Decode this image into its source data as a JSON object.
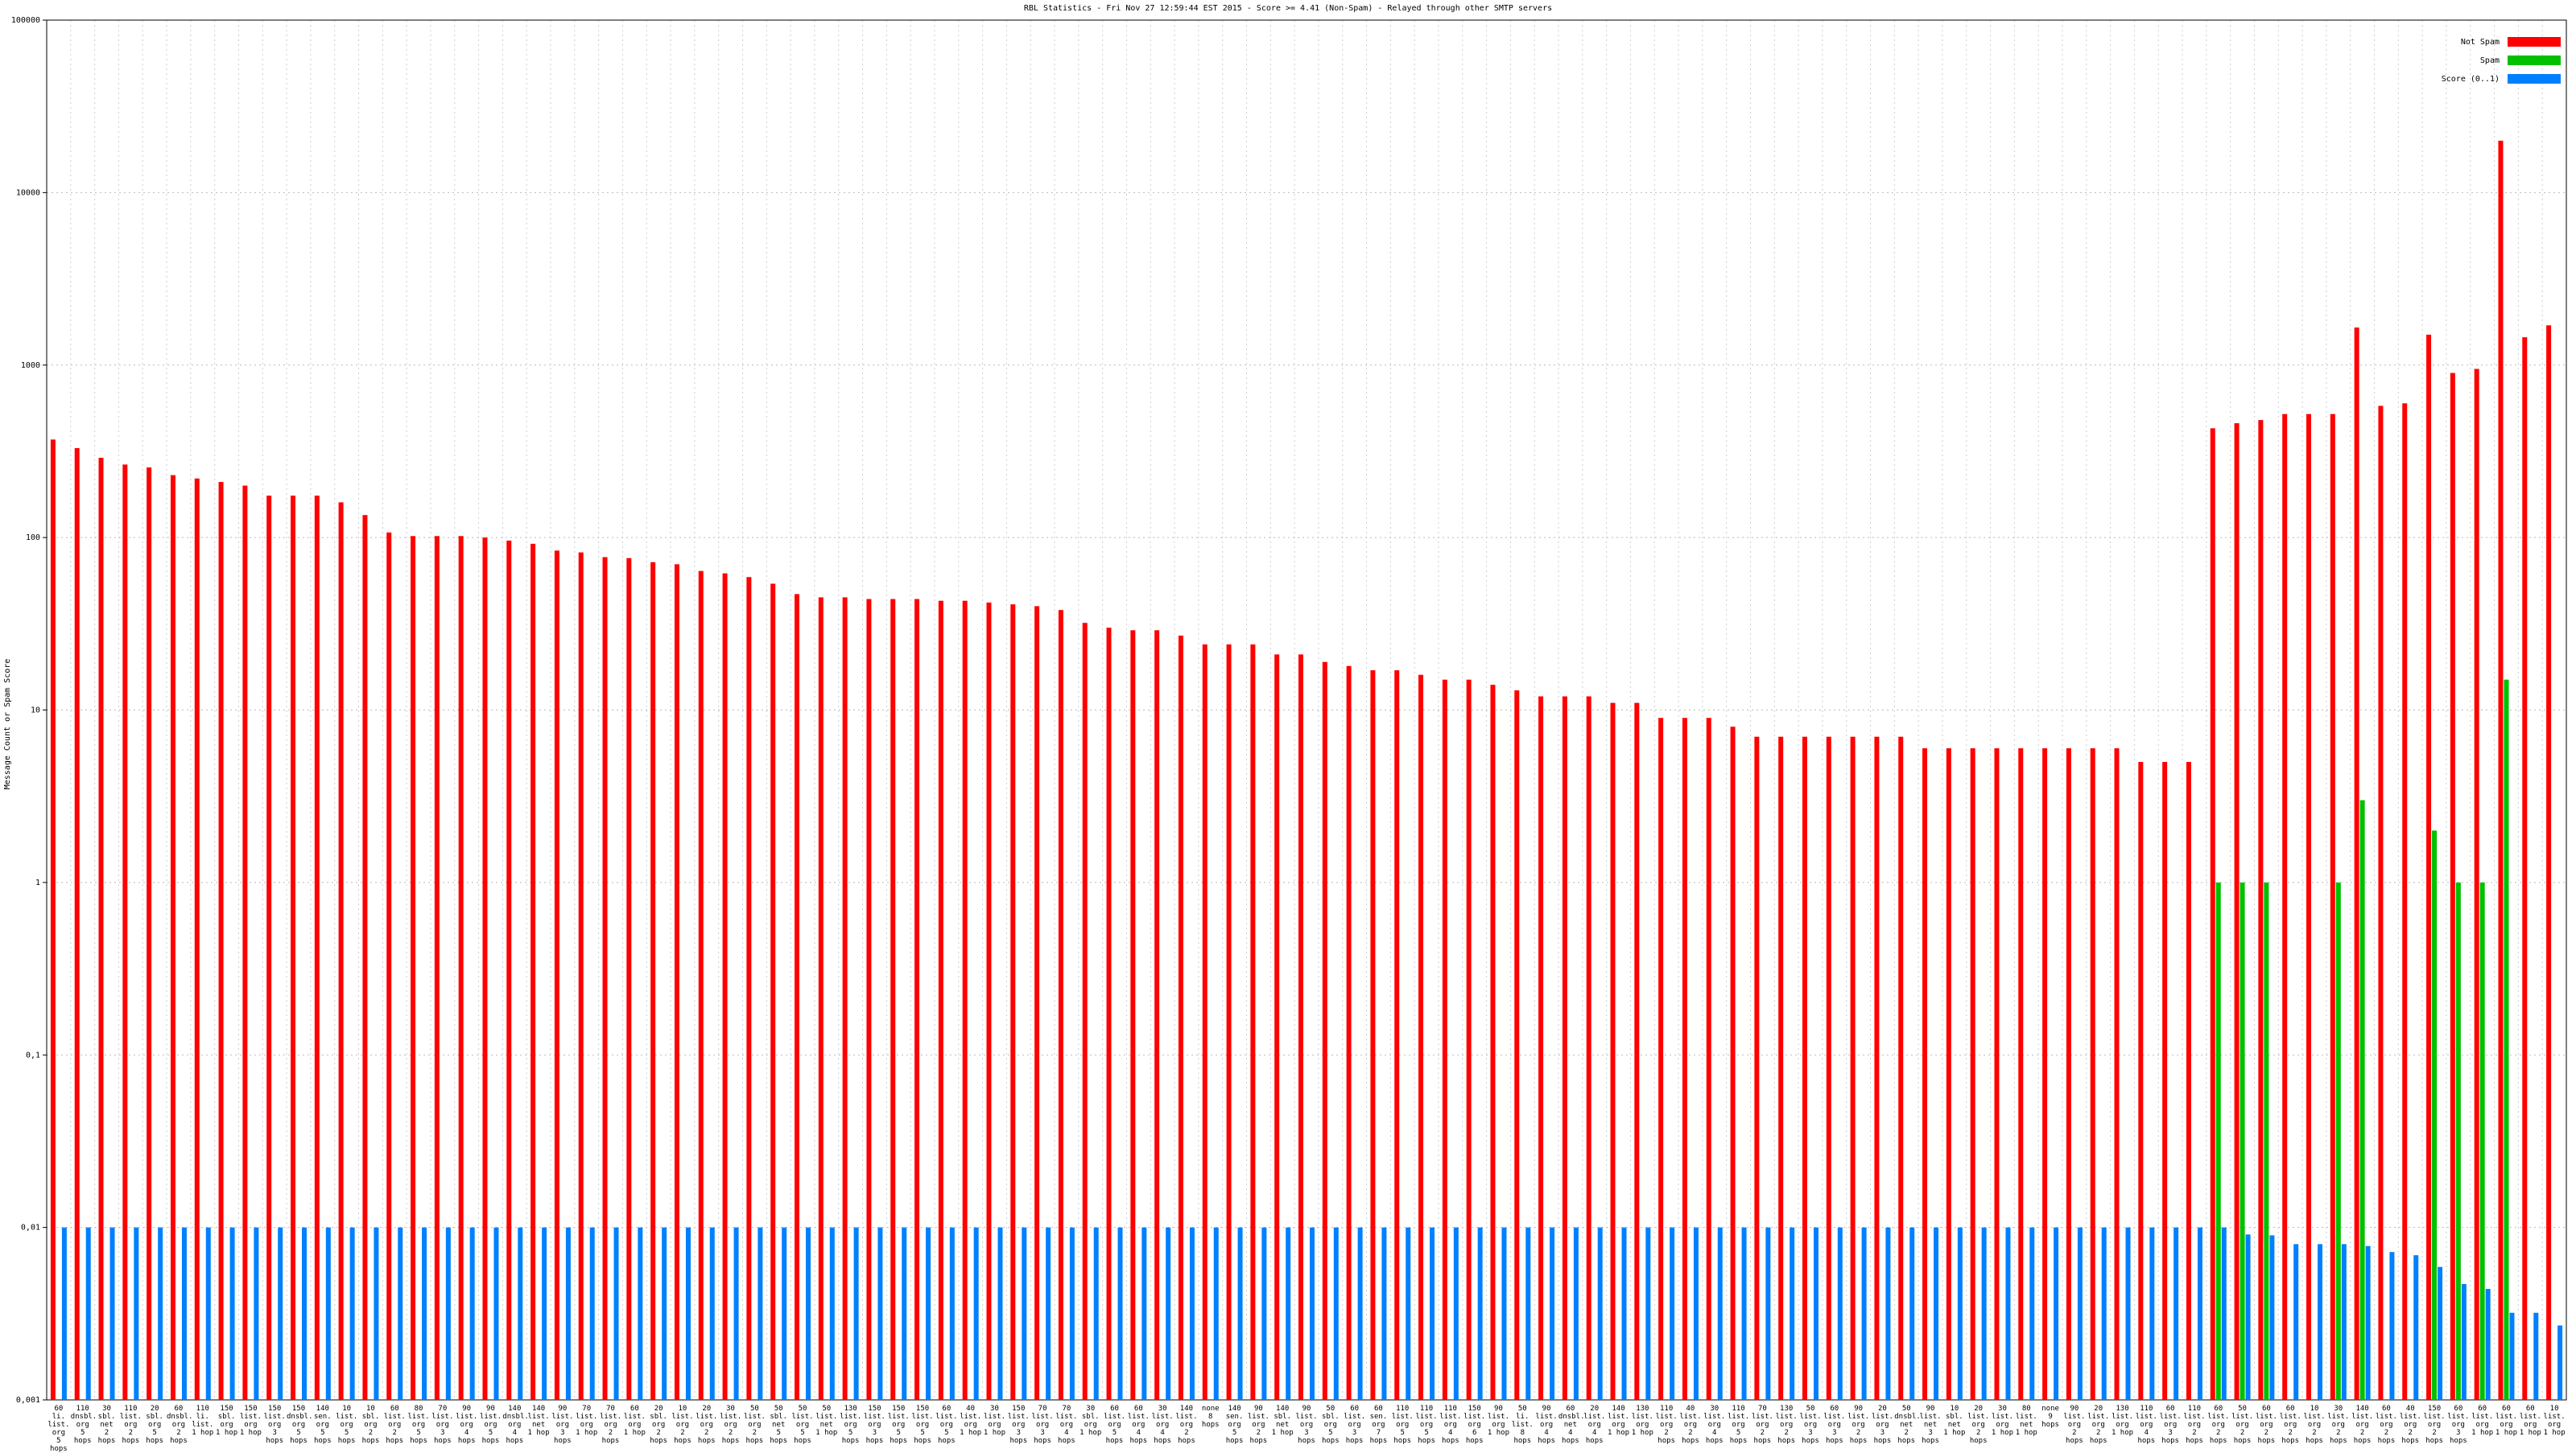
{
  "chart_data": {
    "type": "bar",
    "title": "RBL Statistics - Fri Nov 27 12:59:44 EST 2015 - Score >= 4.41 (Non-Spam) - Relayed through other SMTP servers",
    "y_label": "Message Count or Spam Score",
    "log_scale": true,
    "grid": true,
    "legend": "top-right",
    "ylim": [
      0.001,
      100000
    ],
    "yticks": [
      {
        "value": 0.001,
        "label": "0,001"
      },
      {
        "value": 0.01,
        "label": "0,01"
      },
      {
        "value": 0.1,
        "label": "0,1"
      },
      1,
      10,
      100,
      1000,
      10000,
      100000
    ],
    "categories": [
      "60\nli.\nlist.\norg\n5 hops",
      "110\ndnsbl.\norg\n5 hops",
      "30\nsbl.\nnet\n2 hops",
      "110\nlist.\norg\n2 hops",
      "20\nsbl.\norg\n5 hops",
      "60\ndnsbl.\norg\n2 hops",
      "110\nli.\nlist.\n1 hop",
      "150\nsbl.\norg\n1 hop",
      "150\nlist.\norg\n1 hop",
      "150\nlist.\norg\n3 hops",
      "150\ndnsbl.\norg\n5 hops",
      "140\nsen.\norg\n5 hops",
      "10\nlist.\norg\n5 hops",
      "10\nsbl.\norg\n2 hops",
      "60\nlist.\norg\n2 hops",
      "80\nlist.\norg\n5 hops",
      "70\nlist.\norg\n3 hops",
      "90\nlist.\norg\n4 hops",
      "90\nlist.\norg\n5 hops",
      "140\ndnsbl.\norg\n4 hops",
      "140\nlist.\nnet\n1 hop",
      "90\nlist.\norg\n3 hops",
      "70\nlist.\norg\n1 hop",
      "70\nlist.\norg\n2 hops",
      "60\nlist.\norg\n1 hop",
      "20\nsbl.\norg\n2 hops",
      "10\nlist.\norg\n2 hops",
      "20\nlist.\norg\n2 hops",
      "30\nlist.\norg\n2 hops",
      "50\nlist.\norg\n2 hops",
      "50\nsbl.\nnet\n5 hops",
      "50\nlist.\norg\n5 hops",
      "50\nlist.\nnet\n1 hop",
      "130\nlist.\norg\n5 hops",
      "150\nlist.\norg\n3 hops",
      "150\nlist.\norg\n5 hops",
      "150\nlist.\norg\n5 hops",
      "60\nlist.\norg\n5 hops",
      "40\nlist.\norg\n1 hop",
      "30\nlist.\norg\n1 hop",
      "150\nlist.\norg\n3 hops",
      "70\nlist.\norg\n3 hops",
      "70\nlist.\norg\n4 hops",
      "30\nsbl.\norg\n1 hop",
      "60\nlist.\norg\n5 hops",
      "60\nlist.\norg\n4 hops",
      "30\nlist.\norg\n4 hops",
      "140\nlist.\norg\n2 hops",
      "none\n8 hops",
      "140\nsen.\norg\n5 hops",
      "90\nlist.\norg\n2 hops",
      "140\nsbl.\nnet\n1 hop",
      "90\nlist.\norg\n3 hops",
      "50\nsbl.\norg\n5 hops",
      "60\nlist.\norg\n3 hops",
      "60\nsen.\norg\n7 hops",
      "110\nlist.\norg\n5 hops",
      "110\nlist.\norg\n5 hops",
      "110\nlist.\norg\n4 hops",
      "150\nlist.\norg\n6 hops",
      "90\nlist.\norg\n1 hop",
      "50\nli.\nlist.\n8 hops",
      "90\nlist.\norg\n4 hops",
      "60\ndnsbl.\nnet\n4 hops",
      "20\nlist.\norg\n4 hops",
      "140\nlist.\norg\n1 hop",
      "130\nlist.\norg\n1 hop",
      "110\nlist.\norg\n2 hops",
      "40\nlist.\norg\n2 hops",
      "30\nlist.\norg\n4 hops",
      "110\nlist.\norg\n5 hops",
      "70\nlist.\norg\n2 hops",
      "130\nlist.\norg\n2 hops",
      "50\nlist.\norg\n3 hops",
      "60\nlist.\norg\n3 hops",
      "90\nlist.\norg\n2 hops",
      "20\nlist.\norg\n3 hops",
      "50\ndnsbl.\nnet\n2 hops",
      "90\nlist.\nnet\n3 hops",
      "10\nsbl.\nnet\n1 hop",
      "20\nlist.\norg\n2 hops",
      "30\nlist.\norg\n1 hop",
      "80\nlist.\nnet\n1 hop",
      "none\n9 hops",
      "90\nlist.\norg\n2 hops",
      "20\nlist.\norg\n2 hops",
      "130\nlist.\norg\n1 hop",
      "110\nlist.\norg\n4 hops",
      "60\nlist.\norg\n3 hops",
      "110\nlist.\norg\n2 hops",
      "60\nlist.\norg\n2 hops",
      "50\nlist.\norg\n2 hops",
      "60\nlist.\norg\n2 hops",
      "60\nlist.\norg\n2 hops",
      "10\nlist.\norg\n2 hops",
      "30\nlist.\norg\n2 hops",
      "140\nlist.\norg\n2 hops",
      "60\nlist.\norg\n2 hops",
      "40\nlist.\norg\n2 hops",
      "150\nlist.\norg\n2 hops",
      "60\nlist.\norg\n3 hops",
      "60\nlist.\norg\n1 hop",
      "60\nlist.\norg\n1 hop",
      "60\nlist.\norg\n1 hop",
      "10\nlist.\norg\n1 hop"
    ],
    "series": [
      {
        "name": "Not Spam",
        "color": "#ff0000",
        "values": [
          370,
          330,
          290,
          265,
          255,
          230,
          220,
          210,
          200,
          175,
          175,
          175,
          160,
          135,
          107,
          102,
          102,
          102,
          100,
          96,
          92,
          84,
          82,
          77,
          76,
          72,
          70,
          64,
          62,
          59,
          54,
          47,
          45,
          45,
          44,
          44,
          44,
          43,
          43,
          42,
          41,
          40,
          38,
          32,
          30,
          29,
          29,
          27,
          24,
          24,
          24,
          21,
          21,
          19,
          18,
          17,
          17,
          16,
          15,
          15,
          14,
          13,
          12,
          12,
          12,
          11,
          11,
          9,
          9,
          9,
          8,
          7,
          7,
          7,
          7,
          7,
          7,
          7,
          6,
          6,
          6,
          6,
          6,
          6,
          6,
          6,
          6,
          5,
          5,
          5,
          430,
          460,
          480,
          520,
          520,
          520,
          1650,
          580,
          600,
          1500,
          900,
          950,
          20000,
          1450,
          1700
        ]
      },
      {
        "name": "Spam",
        "color": "#00c000",
        "values": [
          null,
          null,
          null,
          null,
          null,
          null,
          null,
          null,
          null,
          null,
          null,
          null,
          null,
          null,
          null,
          null,
          null,
          null,
          null,
          null,
          null,
          null,
          null,
          null,
          null,
          null,
          null,
          null,
          null,
          null,
          null,
          null,
          null,
          null,
          null,
          null,
          null,
          null,
          null,
          null,
          null,
          null,
          null,
          null,
          null,
          null,
          null,
          null,
          null,
          null,
          null,
          null,
          null,
          null,
          null,
          null,
          null,
          null,
          null,
          null,
          null,
          null,
          null,
          null,
          null,
          null,
          null,
          null,
          null,
          null,
          null,
          null,
          null,
          null,
          null,
          null,
          null,
          null,
          null,
          null,
          null,
          null,
          null,
          null,
          null,
          null,
          null,
          null,
          null,
          null,
          1,
          1,
          1,
          null,
          null,
          1,
          3,
          null,
          null,
          2,
          1,
          1,
          15,
          null,
          null
        ]
      },
      {
        "name": "Score (0..1)",
        "color": "#0080ff",
        "values": [
          0.01,
          0.01,
          0.01,
          0.01,
          0.01,
          0.01,
          0.01,
          0.01,
          0.01,
          0.01,
          0.01,
          0.01,
          0.01,
          0.01,
          0.01,
          0.01,
          0.01,
          0.01,
          0.01,
          0.01,
          0.01,
          0.01,
          0.01,
          0.01,
          0.01,
          0.01,
          0.01,
          0.01,
          0.01,
          0.01,
          0.01,
          0.01,
          0.01,
          0.01,
          0.01,
          0.01,
          0.01,
          0.01,
          0.01,
          0.01,
          0.01,
          0.01,
          0.01,
          0.01,
          0.01,
          0.01,
          0.01,
          0.01,
          0.01,
          0.01,
          0.01,
          0.01,
          0.01,
          0.01,
          0.01,
          0.01,
          0.01,
          0.01,
          0.01,
          0.01,
          0.01,
          0.01,
          0.01,
          0.01,
          0.01,
          0.01,
          0.01,
          0.01,
          0.01,
          0.01,
          0.01,
          0.01,
          0.01,
          0.01,
          0.01,
          0.01,
          0.01,
          0.01,
          0.01,
          0.01,
          0.01,
          0.01,
          0.01,
          0.01,
          0.01,
          0.01,
          0.01,
          0.01,
          0.01,
          0.01,
          0.01,
          0.0091,
          0.009,
          0.008,
          0.008,
          0.008,
          0.0078,
          0.0072,
          0.0069,
          0.0059,
          0.0047,
          0.0044,
          0.0032,
          0.0032,
          0.0027
        ]
      }
    ]
  }
}
